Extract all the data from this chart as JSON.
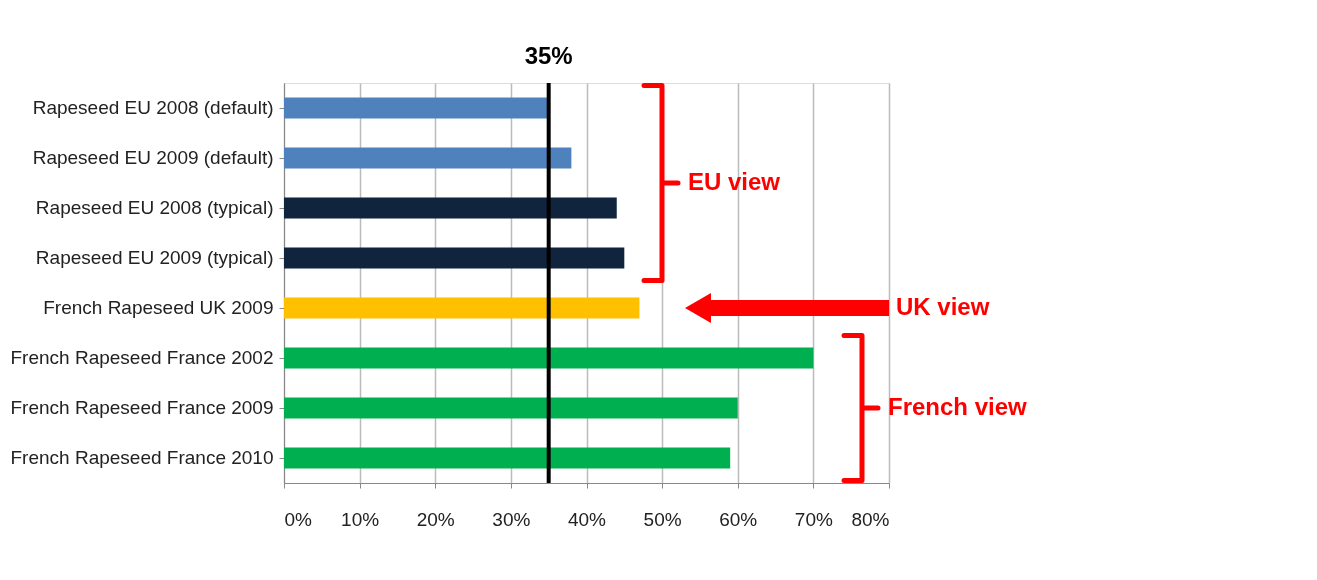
{
  "chart_data": {
    "type": "bar",
    "orientation": "horizontal",
    "categories": [
      "Rapeseed EU 2008 (default)",
      "Rapeseed EU 2009 (default)",
      "Rapeseed EU 2008 (typical)",
      "Rapeseed EU 2009 (typical)",
      "French Rapeseed UK 2009",
      "French Rapeseed France 2002",
      "French Rapeseed France 2009",
      "French Rapeseed France 2010"
    ],
    "values": [
      35,
      38,
      44,
      45,
      47,
      70,
      60,
      59
    ],
    "colors": [
      "#4f81bd",
      "#4f81bd",
      "#10243e",
      "#10243e",
      "#ffc000",
      "#00b050",
      "#00b050",
      "#00b050"
    ],
    "xlim": [
      0,
      80
    ],
    "xticks": [
      {
        "value": 0,
        "label": "0%"
      },
      {
        "value": 10,
        "label": "10%"
      },
      {
        "value": 20,
        "label": "20%"
      },
      {
        "value": 30,
        "label": "30%"
      },
      {
        "value": 40,
        "label": "40%"
      },
      {
        "value": 50,
        "label": "50%"
      },
      {
        "value": 60,
        "label": "60%"
      },
      {
        "value": 70,
        "label": "70%"
      },
      {
        "value": 80,
        "label": "80%"
      }
    ],
    "ref_lines": [
      {
        "axis": "x",
        "value": 35,
        "label": "35%",
        "color": "#000000"
      }
    ],
    "annotations": [
      "EU view",
      "UK view",
      "French view"
    ],
    "grid": "x"
  }
}
